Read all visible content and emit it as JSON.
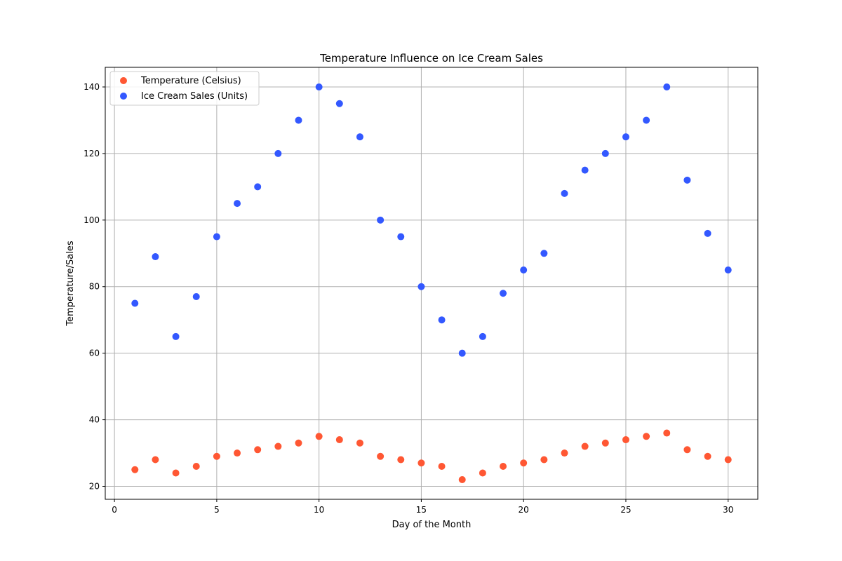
{
  "chart_data": {
    "type": "scatter",
    "title": "Temperature Influence on Ice Cream Sales",
    "xlabel": "Day of the Month",
    "ylabel": "Temperature/Sales",
    "xlim": [
      -0.45,
      31.45
    ],
    "ylim": [
      16.1,
      145.9
    ],
    "x_ticks": [
      0,
      5,
      10,
      15,
      20,
      25,
      30
    ],
    "y_ticks": [
      20,
      40,
      60,
      80,
      100,
      120,
      140
    ],
    "grid": true,
    "legend_position": "top-left",
    "x": [
      1,
      2,
      3,
      4,
      5,
      6,
      7,
      8,
      9,
      10,
      11,
      12,
      13,
      14,
      15,
      16,
      17,
      18,
      19,
      20,
      21,
      22,
      23,
      24,
      25,
      26,
      27,
      28,
      29,
      30
    ],
    "series": [
      {
        "name": "Temperature (Celsius)",
        "color": "#ff5733",
        "values": [
          25,
          28,
          24,
          26,
          29,
          30,
          31,
          32,
          33,
          35,
          34,
          33,
          29,
          28,
          27,
          26,
          22,
          24,
          26,
          27,
          28,
          30,
          32,
          33,
          34,
          35,
          36,
          31,
          29,
          28
        ]
      },
      {
        "name": "Ice Cream Sales (Units)",
        "color": "#3358ff",
        "values": [
          75,
          89,
          65,
          77,
          95,
          105,
          110,
          120,
          130,
          140,
          135,
          125,
          100,
          95,
          80,
          70,
          60,
          65,
          78,
          85,
          90,
          108,
          115,
          120,
          125,
          130,
          140,
          112,
          96,
          85
        ]
      }
    ]
  }
}
